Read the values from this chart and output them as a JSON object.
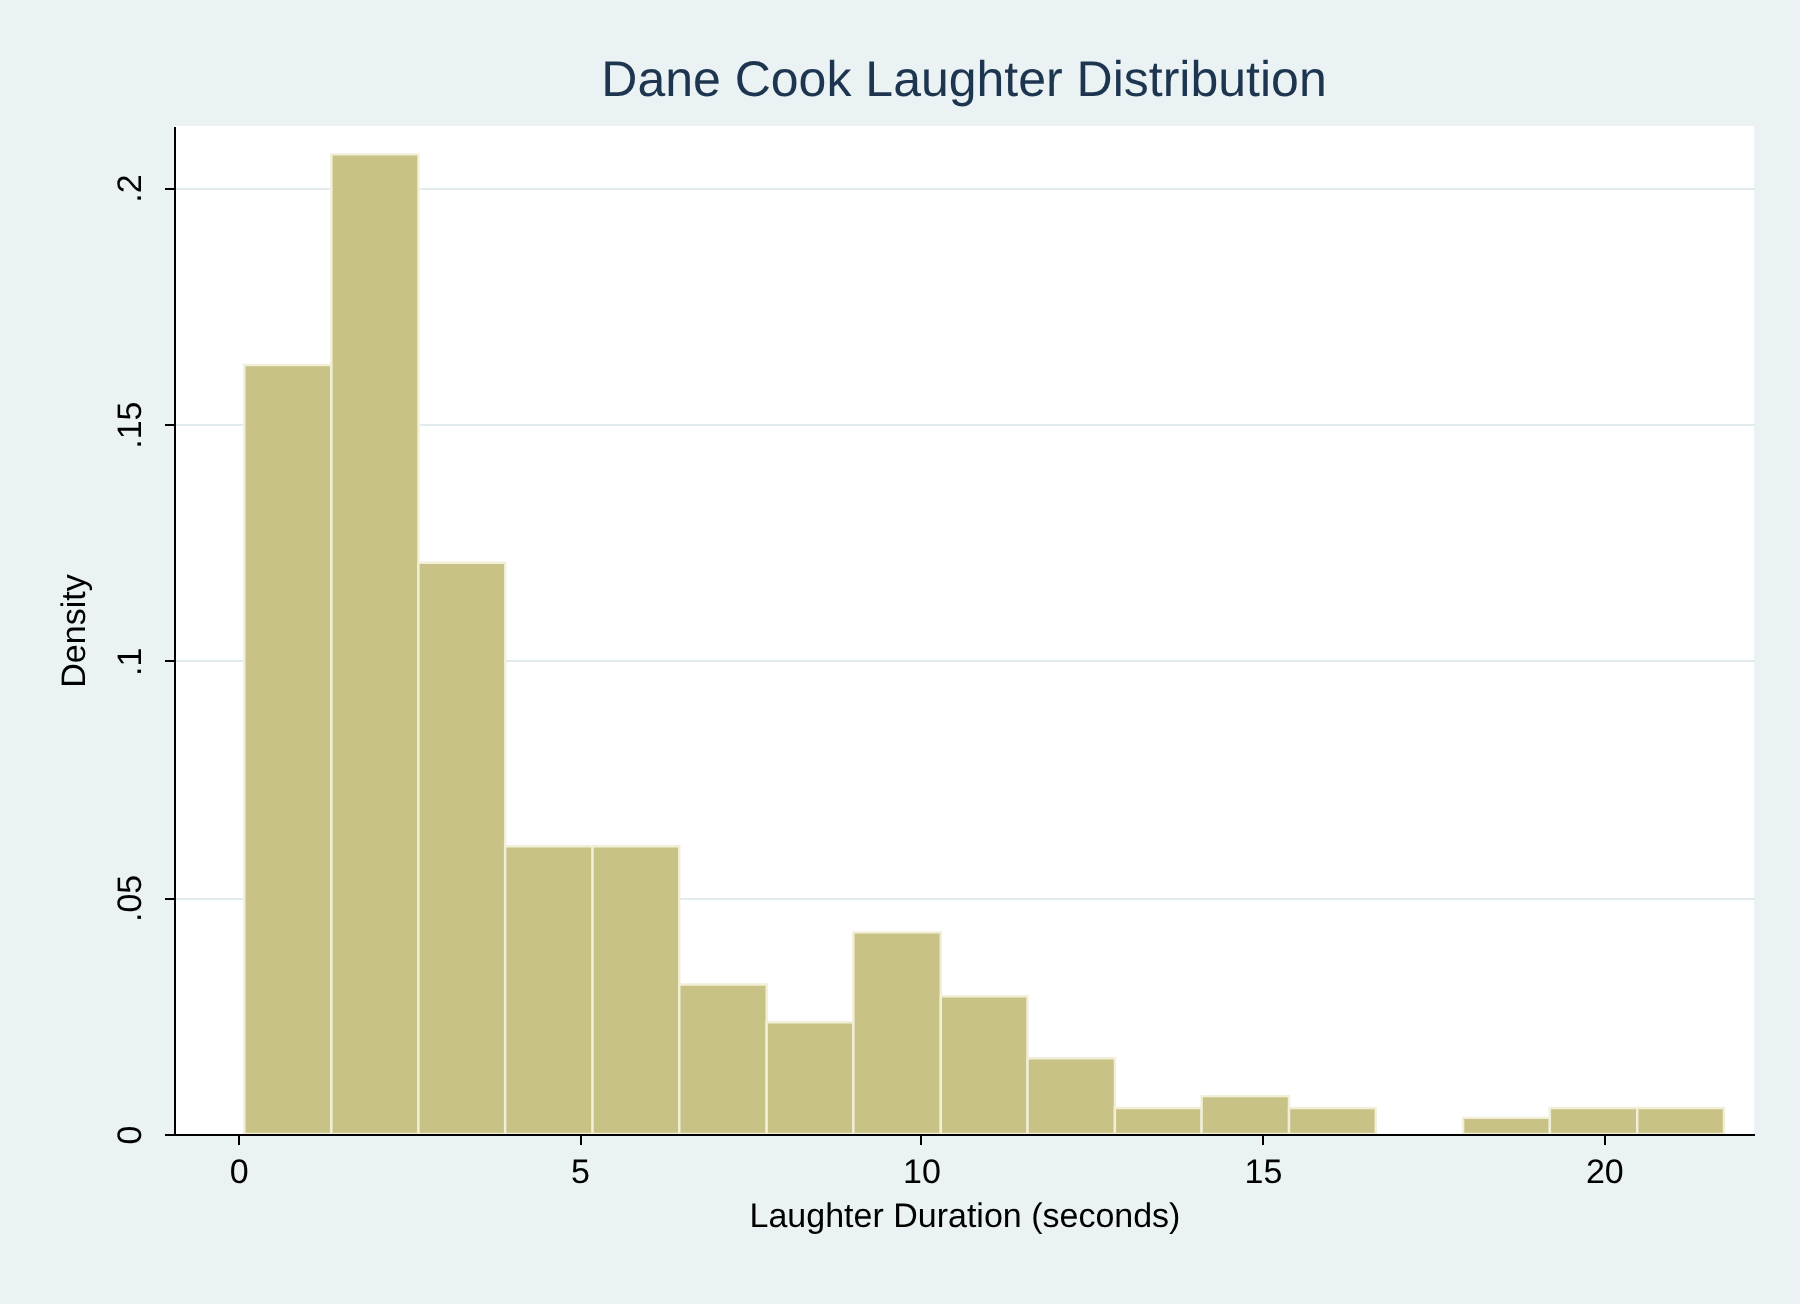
{
  "chart_data": {
    "type": "histogram",
    "title": "Dane Cook Laughter Distribution",
    "xlabel": "Laughter Duration (seconds)",
    "ylabel": "Density",
    "bins": [
      0.09,
      1.365,
      2.64,
      3.91,
      5.19,
      6.46,
      7.74,
      9.01,
      10.29,
      11.56,
      12.84,
      14.11,
      15.39,
      16.66,
      17.94,
      19.21,
      20.49,
      21.76
    ],
    "values": [
      0.1625,
      0.207,
      0.1207,
      0.0608,
      0.0608,
      0.0316,
      0.0236,
      0.0426,
      0.0291,
      0.016,
      0.0055,
      0.008,
      0.0055,
      0,
      0.0034,
      0.0055,
      0.0055
    ],
    "color": "#c9c286",
    "xlim": [
      -0.94,
      22.2
    ],
    "xticks": [
      0,
      5,
      10,
      15,
      20
    ],
    "ylim": [
      0,
      0.213
    ],
    "yticks": [
      0,
      {
        "value": 0.05,
        "label": ".05"
      },
      {
        "value": 0.1,
        "label": ".1"
      },
      {
        "value": 0.15,
        "label": ".15"
      },
      {
        "value": 0.2,
        "label": ".2"
      }
    ],
    "grid": "y"
  }
}
